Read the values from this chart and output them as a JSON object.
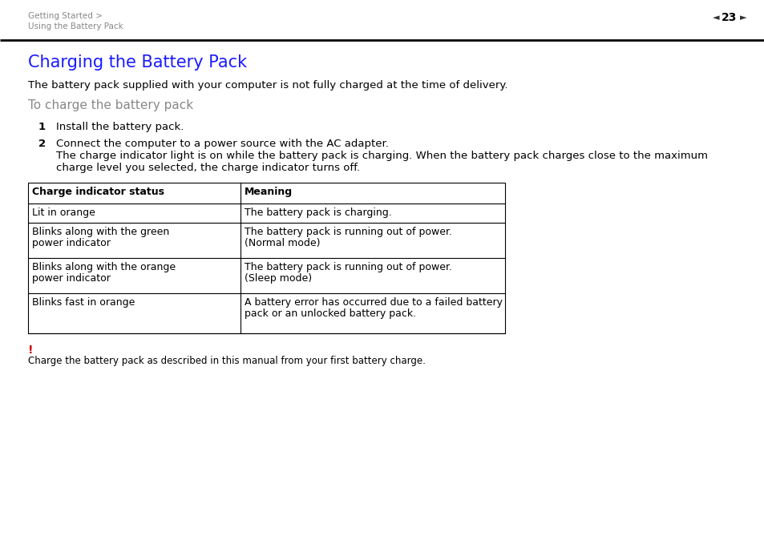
{
  "bg_color": "#ffffff",
  "header_text_left_line1": "Getting Started >",
  "header_text_left_line2": "Using the Battery Pack",
  "header_page_num": "23",
  "header_color": "#888888",
  "header_line_color": "#000000",
  "title": "Charging the Battery Pack",
  "title_color": "#1a1aff",
  "title_fontsize": 15,
  "subtitle": "The battery pack supplied with your computer is not fully charged at the time of delivery.",
  "subtitle_fontsize": 9.5,
  "section_heading": "To charge the battery pack",
  "section_heading_color": "#888888",
  "section_heading_fontsize": 11,
  "step1_num": "1",
  "step1_text": "Install the battery pack.",
  "step2_num": "2",
  "step2_line1": "Connect the computer to a power source with the AC adapter.",
  "step2_line2": "The charge indicator light is on while the battery pack is charging. When the battery pack charges close to the maximum",
  "step2_line3": "charge level you selected, the charge indicator turns off.",
  "table_col1_header": "Charge indicator status",
  "table_col2_header": "Meaning",
  "table_rows": [
    [
      "Lit in orange",
      "The battery pack is charging.",
      "",
      ""
    ],
    [
      "Blinks along with the green",
      "The battery pack is running out of power.",
      "power indicator",
      "(Normal mode)"
    ],
    [
      "Blinks along with the orange",
      "The battery pack is running out of power.",
      "power indicator",
      "(Sleep mode)"
    ],
    [
      "Blinks fast in orange",
      "A battery error has occurred due to a failed battery",
      "",
      "pack or an unlocked battery pack."
    ]
  ],
  "note_exclamation": "!",
  "note_exclamation_color": "#cc0000",
  "note_text": "Charge the battery pack as described in this manual from your first battery charge.",
  "body_fontsize": 9.5,
  "table_fontsize": 9,
  "step_fontsize": 9.5
}
